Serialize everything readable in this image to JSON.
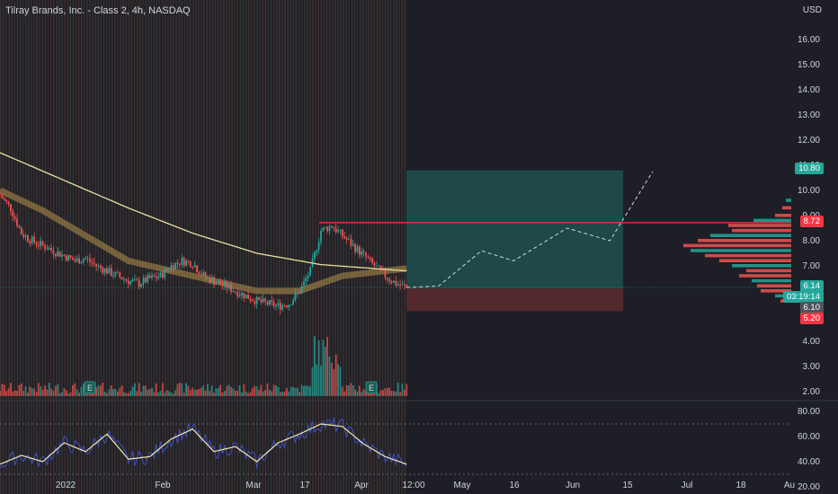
{
  "header": {
    "title": "Tilray Brands, Inc. - Class 2, 4h, NASDAQ",
    "currency": "USD"
  },
  "colors": {
    "background": "#1e1e26",
    "up": "#26a69a",
    "down": "#ef5350",
    "ma": "#e8e0a0",
    "ema_band": "#b5924a",
    "rsi": "#f0e6b0",
    "rsi_raw": "#3f51c5",
    "target_zone": "#1f4d4d",
    "stop_zone": "#5a2a30",
    "resistance": "#f23645"
  },
  "price_tags": {
    "target": "10.80",
    "resistance": "8.72",
    "last": "6.14",
    "countdown": "03:19:14",
    "entry": "6.10",
    "stop": "5.20"
  },
  "chart_data": {
    "type": "candlestick",
    "title": "Tilray Brands, Inc. - Class 2, 4h, NASDAQ",
    "currency": "USD",
    "y_axis_ticks": [
      "16.00",
      "15.00",
      "14.00",
      "13.00",
      "12.00",
      "11.00",
      "10.00",
      "9.00",
      "8.00",
      "7.00",
      "6.00",
      "5.00",
      "4.00",
      "3.00",
      "2.00"
    ],
    "rsi_axis_ticks": [
      "80.00",
      "60.00",
      "40.00",
      "20.00"
    ],
    "x_axis_ticks": [
      "2022",
      "Feb",
      "Mar",
      "17",
      "Apr",
      "12:00",
      "May",
      "16",
      "Jun",
      "15",
      "Jul",
      "18",
      "Au"
    ],
    "approx_close_path": [
      [
        0,
        9.8
      ],
      [
        5,
        9.3
      ],
      [
        10,
        8.3
      ],
      [
        15,
        8.0
      ],
      [
        20,
        7.8
      ],
      [
        25,
        7.6
      ],
      [
        30,
        7.4
      ],
      [
        35,
        7.2
      ],
      [
        40,
        7.3
      ],
      [
        45,
        7.0
      ],
      [
        50,
        6.8
      ],
      [
        55,
        6.6
      ],
      [
        60,
        6.4
      ],
      [
        65,
        6.3
      ],
      [
        70,
        6.5
      ],
      [
        75,
        6.6
      ],
      [
        80,
        7.0
      ],
      [
        85,
        7.2
      ],
      [
        90,
        7.1
      ],
      [
        95,
        6.6
      ],
      [
        100,
        6.4
      ],
      [
        105,
        6.2
      ],
      [
        110,
        6.0
      ],
      [
        115,
        5.8
      ],
      [
        120,
        5.6
      ],
      [
        125,
        5.5
      ],
      [
        130,
        5.4
      ],
      [
        135,
        5.5
      ],
      [
        140,
        6.0
      ],
      [
        145,
        6.8
      ],
      [
        150,
        8.4
      ],
      [
        155,
        8.6
      ],
      [
        160,
        8.2
      ],
      [
        165,
        7.8
      ],
      [
        170,
        7.4
      ],
      [
        175,
        7.0
      ],
      [
        180,
        6.6
      ],
      [
        185,
        6.3
      ],
      [
        190,
        6.14
      ]
    ],
    "sma_path": [
      [
        0,
        11.5
      ],
      [
        30,
        10.4
      ],
      [
        60,
        9.3
      ],
      [
        90,
        8.3
      ],
      [
        120,
        7.5
      ],
      [
        150,
        7.05
      ],
      [
        190,
        6.8
      ]
    ],
    "ema_path": [
      [
        0,
        10.0
      ],
      [
        20,
        9.2
      ],
      [
        40,
        8.2
      ],
      [
        60,
        7.2
      ],
      [
        80,
        6.8
      ],
      [
        100,
        6.4
      ],
      [
        120,
        6.0
      ],
      [
        140,
        6.0
      ],
      [
        160,
        6.6
      ],
      [
        190,
        6.9
      ]
    ],
    "projection_path": [
      [
        190,
        6.14
      ],
      [
        205,
        6.2
      ],
      [
        225,
        7.6
      ],
      [
        240,
        7.2
      ],
      [
        265,
        8.5
      ],
      [
        285,
        8.0
      ],
      [
        305,
        10.75
      ]
    ],
    "target_zone": {
      "from": 6.1,
      "to": 10.8
    },
    "stop_zone": {
      "from": 5.2,
      "to": 6.1
    },
    "resistance_level": 8.72,
    "volume_profile": [
      [
        9.6,
        6
      ],
      [
        9.3,
        10
      ],
      [
        9.0,
        18
      ],
      [
        8.8,
        42
      ],
      [
        8.6,
        70
      ],
      [
        8.4,
        66
      ],
      [
        8.2,
        90
      ],
      [
        8.0,
        104
      ],
      [
        7.8,
        120
      ],
      [
        7.6,
        112
      ],
      [
        7.4,
        96
      ],
      [
        7.2,
        80
      ],
      [
        7.0,
        66
      ],
      [
        6.8,
        50
      ],
      [
        6.6,
        58
      ],
      [
        6.4,
        44
      ],
      [
        6.2,
        38
      ],
      [
        6.0,
        34
      ],
      [
        5.8,
        18
      ],
      [
        5.6,
        12
      ]
    ],
    "rsi_values": [
      [
        0,
        38
      ],
      [
        10,
        45
      ],
      [
        20,
        40
      ],
      [
        30,
        55
      ],
      [
        40,
        48
      ],
      [
        50,
        62
      ],
      [
        60,
        42
      ],
      [
        70,
        44
      ],
      [
        80,
        58
      ],
      [
        90,
        66
      ],
      [
        100,
        48
      ],
      [
        110,
        52
      ],
      [
        120,
        40
      ],
      [
        130,
        55
      ],
      [
        140,
        62
      ],
      [
        150,
        70
      ],
      [
        160,
        68
      ],
      [
        170,
        54
      ],
      [
        180,
        44
      ],
      [
        190,
        38
      ]
    ],
    "rsi_bands": [
      70,
      30
    ],
    "earnings_markers": [
      "E",
      "E"
    ]
  }
}
